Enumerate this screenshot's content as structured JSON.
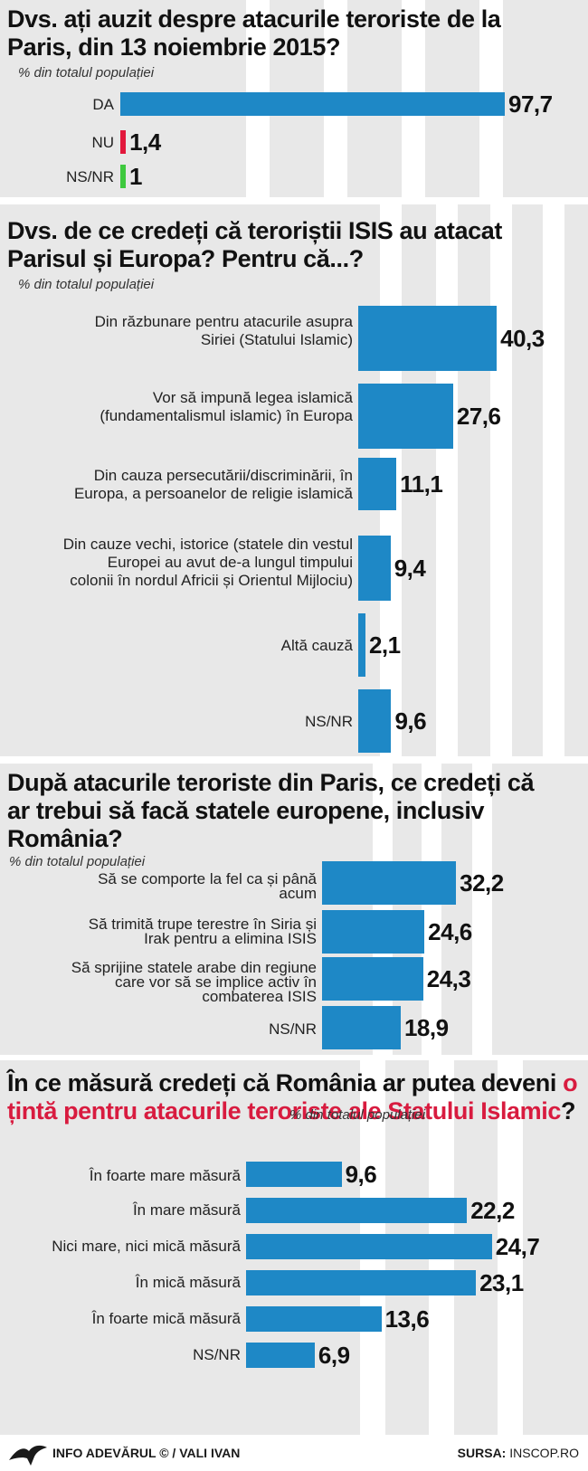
{
  "footer": {
    "credit": "INFO ADEVĂRUL © / VALI IVAN",
    "source_label": "SURSA:",
    "source": "INSCOP.RO"
  },
  "chart_data": [
    {
      "type": "bar",
      "orientation": "horizontal",
      "title": "Dvs. ați auzit despre atacurile teroriste de la Paris, din 13 noiembrie 2015?",
      "subtitle": "% din totalul populației",
      "categories": [
        "DA",
        "NU",
        "NS/NR"
      ],
      "values": [
        97.7,
        1.4,
        1
      ],
      "value_labels": [
        "97,7",
        "1,4",
        "1"
      ],
      "bar_colors": [
        "#1e88c6",
        "#e2183c",
        "#3ec93e"
      ]
    },
    {
      "type": "bar",
      "orientation": "horizontal",
      "title": "Dvs. de ce credeți că teroriștii ISIS au atacat Parisul și Europa? Pentru că...?",
      "subtitle": "% din totalul populației",
      "categories": [
        "Din răzbunare pentru atacurile asupra Siriei (Statului Islamic)",
        "Vor să impună legea islamică (fundamentalismul islamic) în Europa",
        "Din cauza persecutării/discriminării, în Europa, a persoanelor de religie islamică",
        "Din cauze vechi, istorice (statele din vestul Europei au avut de-a lungul timpului colonii în nordul Africii și Orientul Mijlociu)",
        "Altă cauză",
        "NS/NR"
      ],
      "category_lines": [
        [
          "Din răzbunare pentru atacurile asupra",
          "Siriei (Statului Islamic)"
        ],
        [
          "Vor să impună legea islamică",
          "(fundamentalismul islamic) în Europa"
        ],
        [
          "Din cauza persecutării/discriminării, în",
          "Europa, a persoanelor de religie islamică"
        ],
        [
          "Din cauze vechi, istorice (statele din vestul",
          "Europei au avut de-a lungul timpului",
          "colonii în nordul Africii și Orientul Mijlociu)"
        ],
        [
          "Altă cauză"
        ],
        [
          "NS/NR"
        ]
      ],
      "values": [
        40.3,
        27.6,
        11.1,
        9.4,
        2.1,
        9.6
      ],
      "value_labels": [
        "40,3",
        "27,6",
        "11,1",
        "9,4",
        "2,1",
        "9,6"
      ],
      "bar_color": "#1e88c6"
    },
    {
      "type": "bar",
      "orientation": "horizontal",
      "title": "După atacurile teroriste din Paris, ce credeți că ar trebui să facă statele europene, inclusiv România?",
      "subtitle": "% din totalul populației",
      "categories": [
        "Să se comporte la fel ca și până acum",
        "Să trimită trupe terestre în Siria și Irak pentru a elimina ISIS",
        "Să sprijine statele arabe din regiune care vor să se implice activ în combaterea ISIS",
        "NS/NR"
      ],
      "category_lines": [
        [
          "Să se comporte la fel ca și până",
          "acum"
        ],
        [
          "Să trimită trupe terestre în Siria și",
          "Irak pentru a elimina ISIS"
        ],
        [
          "Să sprijine statele arabe din regiune",
          "care vor să se implice activ în",
          "combaterea ISIS"
        ],
        [
          "NS/NR"
        ]
      ],
      "values": [
        32.2,
        24.6,
        24.3,
        18.9
      ],
      "value_labels": [
        "32,2",
        "24,6",
        "24,3",
        "18,9"
      ],
      "bar_color": "#1e88c6"
    },
    {
      "type": "bar",
      "orientation": "horizontal",
      "title": "În ce măsură credeți că România ar putea deveni o țintă pentru atacurile teroriste ale Statului Islamic?",
      "subtitle": "% din totalul populației",
      "categories": [
        "În foarte mare măsură",
        "În mare măsură",
        "Nici mare, nici mică măsură",
        "În mică măsură",
        "În foarte mică măsură",
        "NS/NR"
      ],
      "values": [
        9.6,
        22.2,
        24.7,
        23.1,
        13.6,
        6.9
      ],
      "value_labels": [
        "9,6",
        "22,2",
        "24,7",
        "23,1",
        "13,6",
        "6,9"
      ],
      "bar_color": "#1e88c6",
      "title_highlight_color": "#d81b3f"
    }
  ]
}
